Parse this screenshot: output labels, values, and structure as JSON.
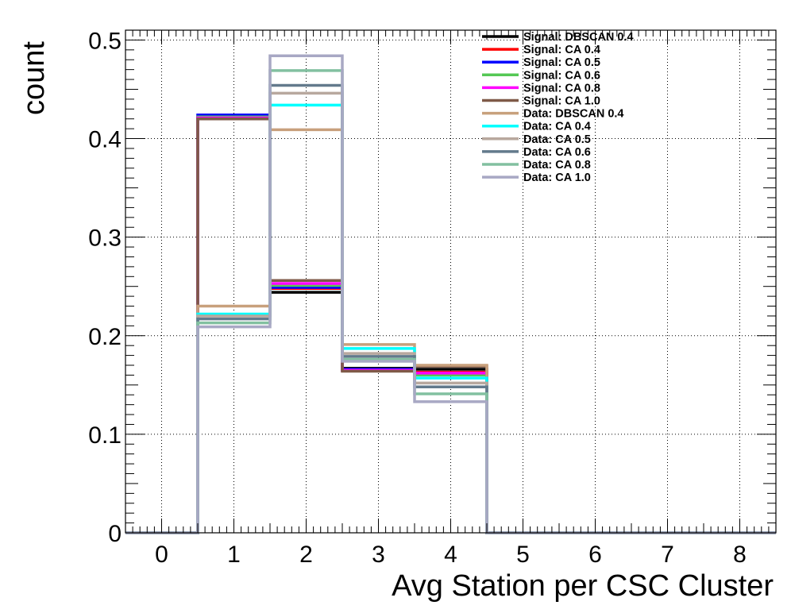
{
  "chart_data": {
    "type": "histogram",
    "xlabel": "Avg Station per CSC Cluster",
    "ylabel": "count",
    "xlim": [
      -0.5,
      8.5
    ],
    "ylim": [
      0,
      0.51
    ],
    "x_ticks": [
      "0",
      "1",
      "2",
      "3",
      "4",
      "5",
      "6",
      "7",
      "8"
    ],
    "y_ticks": [
      "0",
      "0.1",
      "0.2",
      "0.3",
      "0.4",
      "0.5"
    ],
    "grid": true,
    "legend_position": "top-right",
    "bin_edges": [
      -0.5,
      0.5,
      1.5,
      2.5,
      3.5,
      4.5,
      5.5,
      6.5,
      7.5,
      8.5
    ],
    "series": [
      {
        "name": "Signal: DBSCAN 0.4",
        "color": "#000000",
        "values": [
          0,
          0.422,
          0.244,
          0.167,
          0.166,
          0,
          0,
          0,
          0
        ]
      },
      {
        "name": "Signal: CA 0.4",
        "color": "#ff0000",
        "values": [
          0,
          0.421,
          0.248,
          0.165,
          0.163,
          0,
          0,
          0,
          0
        ]
      },
      {
        "name": "Signal: CA 0.5",
        "color": "#0000ff",
        "values": [
          0,
          0.424,
          0.249,
          0.166,
          0.161,
          0,
          0,
          0,
          0
        ]
      },
      {
        "name": "Signal: CA 0.6",
        "color": "#55c855",
        "values": [
          0,
          0.422,
          0.251,
          0.165,
          0.16,
          0,
          0,
          0,
          0
        ]
      },
      {
        "name": "Signal: CA 0.8",
        "color": "#ff00ff",
        "values": [
          0,
          0.421,
          0.253,
          0.165,
          0.162,
          0,
          0,
          0,
          0
        ]
      },
      {
        "name": "Signal: CA 1.0",
        "color": "#7f5a48",
        "values": [
          0,
          0.42,
          0.256,
          0.164,
          0.169,
          0,
          0,
          0,
          0
        ]
      },
      {
        "name": "Data: DBSCAN 0.4",
        "color": "#c8a07c",
        "values": [
          0,
          0.23,
          0.409,
          0.191,
          0.17,
          0,
          0,
          0,
          0
        ]
      },
      {
        "name": "Data: CA 0.4",
        "color": "#00ffff",
        "values": [
          0,
          0.222,
          0.434,
          0.187,
          0.157,
          0,
          0,
          0,
          0
        ]
      },
      {
        "name": "Data: CA 0.5",
        "color": "#b8a89e",
        "values": [
          0,
          0.22,
          0.446,
          0.182,
          0.152,
          0,
          0,
          0,
          0
        ]
      },
      {
        "name": "Data: CA 0.6",
        "color": "#637a8c",
        "values": [
          0,
          0.217,
          0.454,
          0.179,
          0.148,
          0,
          0,
          0,
          0
        ]
      },
      {
        "name": "Data: CA 0.8",
        "color": "#82c0a0",
        "values": [
          0,
          0.213,
          0.469,
          0.176,
          0.141,
          0,
          0,
          0,
          0
        ]
      },
      {
        "name": "Data: CA 1.0",
        "color": "#a8a8c4",
        "values": [
          0,
          0.209,
          0.484,
          0.174,
          0.133,
          0,
          0,
          0,
          0
        ]
      }
    ]
  }
}
